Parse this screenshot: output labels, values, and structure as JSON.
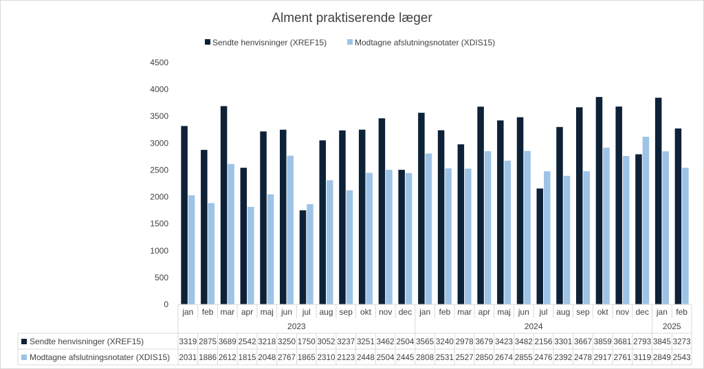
{
  "chart_data": {
    "type": "bar",
    "title": "Alment praktiserende læger",
    "ylim": [
      0,
      4500
    ],
    "yticks": [
      0,
      500,
      1000,
      1500,
      2000,
      2500,
      3000,
      3500,
      4000,
      4500
    ],
    "grid": false,
    "legend_position": "top",
    "year_groups": [
      {
        "label": "2023",
        "count": 12
      },
      {
        "label": "2024",
        "count": 12
      },
      {
        "label": "2025",
        "count": 2
      }
    ],
    "categories": [
      "jan",
      "feb",
      "mar",
      "apr",
      "maj",
      "jun",
      "jul",
      "aug",
      "sep",
      "okt",
      "nov",
      "dec",
      "jan",
      "feb",
      "mar",
      "apr",
      "maj",
      "jun",
      "jul",
      "aug",
      "sep",
      "okt",
      "nov",
      "dec",
      "jan",
      "feb"
    ],
    "series": [
      {
        "name": "Sendte henvisninger (XREF15)",
        "color": "#0d2137",
        "values": [
          3319,
          2875,
          3689,
          2542,
          3218,
          3250,
          1750,
          3052,
          3237,
          3251,
          3462,
          2504,
          3565,
          3240,
          2978,
          3679,
          3423,
          3482,
          2156,
          3301,
          3667,
          3859,
          3681,
          2793,
          3845,
          3273
        ]
      },
      {
        "name": "Modtagne afslutningsnotater (XDIS15)",
        "color": "#9dc3e6",
        "values": [
          2031,
          1886,
          2612,
          1815,
          2048,
          2767,
          1865,
          2310,
          2123,
          2448,
          2504,
          2445,
          2808,
          2531,
          2527,
          2850,
          2674,
          2855,
          2476,
          2392,
          2478,
          2917,
          2761,
          3119,
          2849,
          2543
        ]
      }
    ]
  }
}
